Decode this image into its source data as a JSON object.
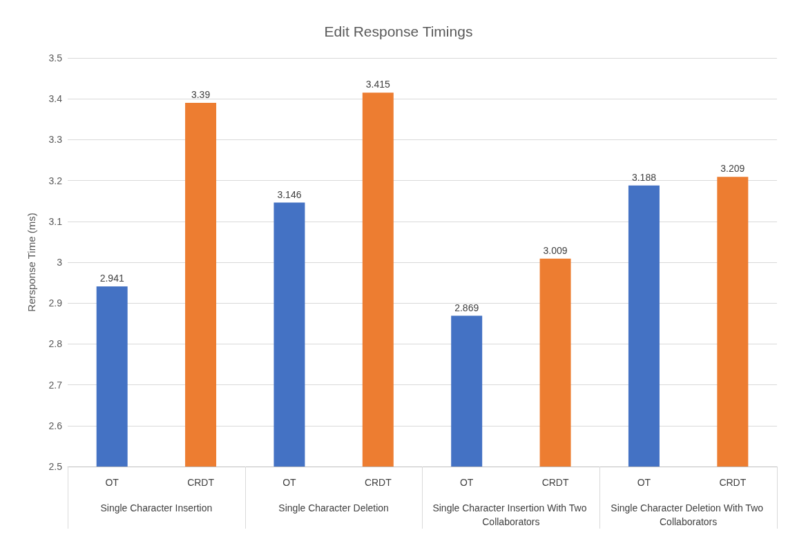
{
  "chart_data": {
    "type": "bar",
    "title": "Edit Response Timings",
    "ylabel": "Rersponse Time (ms)",
    "categories": [
      "OT",
      "CRDT",
      "OT",
      "CRDT",
      "OT",
      "CRDT",
      "OT",
      "CRDT"
    ],
    "values": [
      2.941,
      3.39,
      3.146,
      3.415,
      2.869,
      3.009,
      3.188,
      3.209
    ],
    "colors": [
      "#4472c4",
      "#ed7d31",
      "#4472c4",
      "#ed7d31",
      "#4472c4",
      "#ed7d31",
      "#4472c4",
      "#ed7d31"
    ],
    "annotations": [
      "Single Character Insertion",
      "Single Character Deletion",
      "Single Character Insertion With Two Collaborators",
      "Single Character Deletion With Two Collaborators"
    ],
    "ylim": [
      2.5,
      3.5
    ],
    "yticks": [
      2.5,
      2.6,
      2.7,
      2.8,
      2.9,
      3,
      3.1,
      3.2,
      3.3,
      3.4,
      3.5
    ],
    "grid": "y",
    "data_labels": true
  }
}
